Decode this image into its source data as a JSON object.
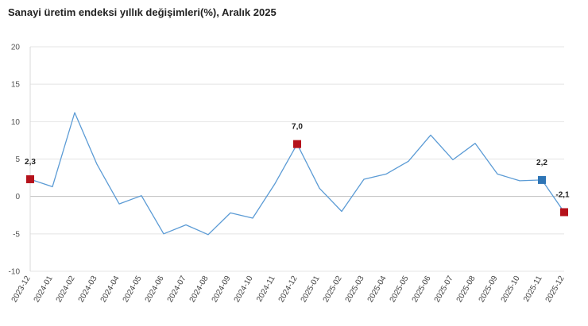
{
  "chart_data": {
    "type": "line",
    "title": "Sanayi üretim endeksi yıllık değişimleri(%), Aralık 2025",
    "xlabel": "",
    "ylabel": "",
    "ylim": [
      -10,
      20
    ],
    "yticks": [
      20,
      15,
      10,
      5,
      0,
      -5,
      -10
    ],
    "grid": true,
    "categories": [
      "2023-12",
      "2024-01",
      "2024-02",
      "2024-03",
      "2024-04",
      "2024-05",
      "2024-06",
      "2024-07",
      "2024-08",
      "2024-09",
      "2024-10",
      "2024-11",
      "2024-12",
      "2025-01",
      "2025-02",
      "2025-03",
      "2025-04",
      "2025-05",
      "2025-06",
      "2025-07",
      "2025-08",
      "2025-09",
      "2025-10",
      "2025-11",
      "2025-12"
    ],
    "series": [
      {
        "name": "Sanayi üretim endeksi yıllık değişim (%)",
        "color": "#5b9bd5",
        "values": [
          2.3,
          1.3,
          11.2,
          4.3,
          -1.0,
          0.1,
          -5.0,
          -3.8,
          -5.1,
          -2.2,
          -2.9,
          1.7,
          7.0,
          1.1,
          -2.0,
          2.3,
          3.0,
          4.7,
          8.2,
          4.9,
          7.1,
          3.0,
          2.1,
          2.2,
          -2.1
        ]
      }
    ],
    "highlighted_points": [
      {
        "category": "2023-12",
        "label": "2,3",
        "color": "#b5121b"
      },
      {
        "category": "2024-12",
        "label": "7,0",
        "color": "#b5121b"
      },
      {
        "category": "2025-11",
        "label": "2,2",
        "color": "#2e75b6"
      },
      {
        "category": "2025-12",
        "label": "-2,1",
        "color": "#b5121b"
      }
    ]
  }
}
